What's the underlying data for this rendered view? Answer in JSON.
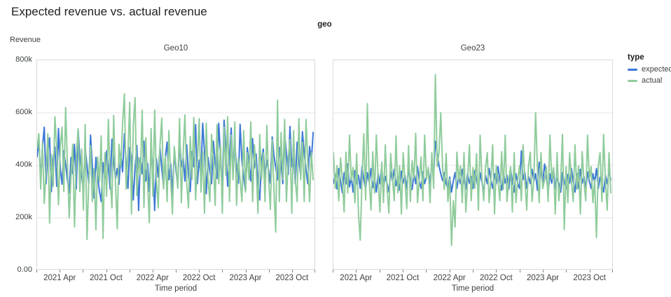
{
  "page_title": "Expected revenue vs. actual revenue",
  "header": {
    "facet_field": "geo"
  },
  "axis": {
    "y_title": "Revenue",
    "x_title": "Time period",
    "y_ticks": [
      {
        "v": 800,
        "label": "800k"
      },
      {
        "v": 600,
        "label": "600k"
      },
      {
        "v": 400,
        "label": "400k"
      },
      {
        "v": 200,
        "label": "200k"
      },
      {
        "v": 0,
        "label": "0.00"
      }
    ],
    "x_ticks": [
      {
        "m": 0,
        "label": ""
      },
      {
        "m": 3,
        "label": "2021 Apr"
      },
      {
        "m": 6,
        "label": ""
      },
      {
        "m": 9,
        "label": "2021 Oct"
      },
      {
        "m": 12,
        "label": ""
      },
      {
        "m": 15,
        "label": "2022 Apr"
      },
      {
        "m": 18,
        "label": ""
      },
      {
        "m": 21,
        "label": "2022 Oct"
      },
      {
        "m": 24,
        "label": ""
      },
      {
        "m": 27,
        "label": "2023 Apr"
      },
      {
        "m": 30,
        "label": ""
      },
      {
        "m": 33,
        "label": "2023 Oct"
      },
      {
        "m": 36,
        "label": ""
      }
    ]
  },
  "legend": {
    "title": "type",
    "items": [
      {
        "label": "expected",
        "color": "#3c78d8"
      },
      {
        "label": "actual",
        "color": "#90cc9c"
      }
    ]
  },
  "chart_data": {
    "type": "line",
    "title": "Expected revenue vs. actual revenue",
    "facet_field": "geo",
    "x_start": "2021-01",
    "x_end": "2023-12",
    "x_interval": "weekly",
    "x_total_months": 36,
    "y_unit": "thousands",
    "ylim": [
      0,
      800
    ],
    "gridlines": [
      200,
      400,
      600
    ],
    "legend_position": "right",
    "facets": [
      {
        "title": "Geo10",
        "series": [
          {
            "name": "expected",
            "color": "#3c78d8",
            "values": [
              432,
              500,
              340,
              470,
              545,
              330,
              455,
              505,
              300,
              425,
              470,
              320,
              540,
              385,
              328,
              455,
              405,
              345,
              295,
              430,
              368,
              480,
              310,
              538,
              430,
              360,
              305,
              465,
              400,
              330,
              515,
              395,
              275,
              430,
              358,
              300,
              262,
              410,
              352,
              455,
              395,
              310,
              500,
              420,
              348,
              388,
              328,
              445,
              375,
              520,
              405,
              312,
              468,
              430,
              268,
              390,
              475,
              228,
              428,
              368,
              492,
              340,
              408,
              300,
              458,
              395,
              228,
              425,
              355,
              468,
              388,
              322,
              430,
              488,
              345,
              405,
              292,
              450,
              380,
              322,
              502,
              395,
              428,
              340,
              478,
              360,
              300,
              452,
              395,
              555,
              330,
              420,
              365,
              560,
              448,
              292,
              430,
              375,
              330,
              492,
              405,
              350,
              560,
              430,
              302,
              572,
              462,
              320,
              430,
              542,
              370,
              478,
              395,
              332,
              556,
              420,
              355,
              302,
              468,
              410,
              340,
              502,
              390,
              443,
              330,
              268,
              415,
              462,
              350,
              420,
              380,
              332,
              508,
              438,
              390,
              345,
              468,
              405,
              330,
              518,
              448,
              365,
              548,
              395,
              443,
              330,
              488,
              420,
              360,
              528,
              443,
              385,
              330,
              472,
              418,
              525
            ]
          },
          {
            "name": "actual",
            "color": "#90cc9c",
            "values": [
              465,
              520,
              310,
              485,
              255,
              380,
              520,
              180,
              440,
              320,
              585,
              460,
              250,
              475,
              545,
              300,
              620,
              410,
              200,
              355,
              480,
              165,
              430,
              540,
              300,
              462,
              230,
              555,
              118,
              340,
              475,
              262,
              388,
              155,
              432,
              338,
              512,
              122,
              448,
              282,
              575,
              360,
              238,
              590,
              330,
              158,
              480,
              395,
              560,
              672,
              310,
              445,
              640,
              215,
              548,
              658,
              285,
              430,
              360,
              610,
              240,
              505,
              340,
              182,
              540,
              282,
              610,
              345,
              238,
              475,
              580,
              310,
              435,
              262,
              532,
              348,
              215,
              472,
              398,
              312,
              578,
              258,
              448,
              592,
              330,
              238,
              510,
              345,
              582,
              268,
              415,
              578,
              298,
              452,
              218,
              560,
              345,
              262,
              518,
              412,
              248,
              555,
              330,
              475,
              218,
              545,
              362,
              585,
              262,
              515,
              345,
              565,
              248,
              428,
              345,
              262,
              532,
              298,
              448,
              345,
              565,
              262,
              478,
              395,
              218,
              518,
              345,
              448,
              262,
              552,
              345,
              232,
              498,
              310,
              146,
              648,
              262,
              525,
              345,
              575,
              262,
              428,
              498,
              218,
              532,
              345,
              262,
              578,
              345,
              488,
              262,
              575,
              410,
              262,
              448,
              345
            ]
          }
        ]
      },
      {
        "title": "Geo23",
        "series": [
          {
            "name": "expected",
            "color": "#3c78d8",
            "values": [
              332,
              365,
              310,
              388,
              340,
              295,
              372,
              330,
              405,
              318,
              355,
              298,
              380,
              330,
              362,
              312,
              395,
              345,
              308,
              372,
              335,
              388,
              315,
              352,
              298,
              368,
              330,
              395,
              312,
              358,
              330,
              298,
              375,
              340,
              385,
              322,
              355,
              305,
              378,
              332,
              362,
              310,
              390,
              342,
              308,
              368,
              330,
              395,
              340,
              312,
              375,
              330,
              358,
              385,
              330,
              408,
              360,
              492,
              445,
              398,
              368,
              342,
              372,
              330,
              312,
              355,
              298,
              340,
              372,
              312,
              358,
              330,
              385,
              340,
              310,
              368,
              332,
              358,
              312,
              380,
              345,
              308,
              372,
              335,
              298,
              362,
              330,
              388,
              342,
              312,
              368,
              330,
              395,
              340,
              305,
              375,
              332,
              362,
              310,
              385,
              340,
              298,
              368,
              330,
              312,
              455,
              345,
              372,
              312,
              358,
              330,
              385,
              340,
              368,
              305,
              412,
              375,
              332,
              405,
              355,
              298,
              368,
              332,
              385,
              312,
              352,
              330,
              298,
              372,
              340,
              312,
              365,
              332,
              388,
              340,
              298,
              368,
              312,
              385,
              332,
              358,
              305,
              375,
              340,
              312,
              368,
              335,
              388,
              312,
              355,
              330,
              298,
              362,
              330,
              375,
              345
            ]
          },
          {
            "name": "actual",
            "color": "#90cc9c",
            "values": [
              448,
              312,
              398,
              265,
              428,
              348,
              222,
              450,
              295,
              515,
              342,
              392,
              258,
              445,
              215,
              115,
              348,
              520,
              268,
              635,
              342,
              230,
              452,
              295,
              515,
              348,
              222,
              412,
              258,
              478,
              308,
              218,
              445,
              350,
              265,
              512,
              295,
              398,
              215,
              448,
              342,
              235,
              475,
              262,
              418,
              348,
              522,
              258,
              342,
              432,
              265,
              515,
              348,
              392,
              258,
              448,
              312,
              745,
              395,
              450,
              600,
              392,
              308,
              445,
              262,
              348,
              95,
              265,
              165,
              450,
              342,
              398,
              258,
              448,
              222,
              345,
              478,
              265,
              392,
              312,
              445,
              230,
              515,
              348,
              265,
              392,
              448,
              258,
              348,
              478,
              215,
              398,
              342,
              265,
              452,
              308,
              515,
              262,
              348,
              395,
              222,
              448,
              258,
              345,
              398,
              265,
              478,
              342,
              230,
              395,
              450,
              262,
              348,
              600,
              392,
              258,
              448,
              312,
              345,
              395,
              262,
              515,
              348,
              392,
              215,
              448,
              265,
              342,
              518,
              155,
              395,
              258,
              448,
              345,
              262,
              478,
              308,
              398,
              215,
              452,
              342,
              265,
              515,
              348,
              395,
              258,
              345,
              125,
              398,
              448,
              262,
              518,
              342,
              230,
              448,
              295
            ]
          }
        ]
      }
    ]
  }
}
